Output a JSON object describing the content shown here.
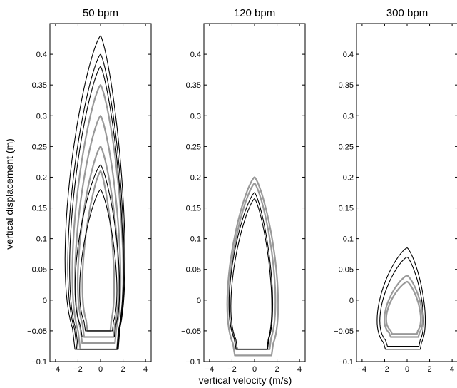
{
  "chart_data": [
    {
      "type": "line",
      "title": "50 bpm",
      "xlabel": "vertical velocity (m/s)",
      "ylabel": "vertical displacement (m)",
      "xlim": [
        -4.5,
        4.5
      ],
      "ylim": [
        -0.1,
        0.45
      ],
      "xticks": [
        -4,
        -2,
        0,
        2,
        4
      ],
      "yticks": [
        -0.1,
        -0.05,
        0,
        0.05,
        0.1,
        0.15,
        0.2,
        0.25,
        0.3,
        0.35,
        0.4
      ],
      "ytick_labels": [
        "−0.1",
        "−0.05",
        "0",
        "0.05",
        "0.1",
        "0.15",
        "0.2",
        "0.25",
        "0.3",
        "0.35",
        "0.4"
      ],
      "xtick_labels": [
        "−4",
        "−2",
        "0",
        "2",
        "4"
      ],
      "show_ytick_labels": true,
      "series": [
        {
          "color": "#999999",
          "loops": [
            {
              "vmin": -3.1,
              "vmax": 2.5,
              "ymin": -0.08,
              "ymax": 0.35
            },
            {
              "vmin": -2.8,
              "vmax": 2.2,
              "ymin": -0.07,
              "ymax": 0.3
            },
            {
              "vmin": -2.5,
              "vmax": 2.0,
              "ymin": -0.06,
              "ymax": 0.25
            },
            {
              "vmin": -2.0,
              "vmax": 1.5,
              "ymin": -0.05,
              "ymax": 0.21
            }
          ]
        },
        {
          "color": "#000000",
          "loops": [
            {
              "vmin": -3.9,
              "vmax": 2.7,
              "ymin": -0.08,
              "ymax": 0.43
            },
            {
              "vmin": -3.6,
              "vmax": 2.6,
              "ymin": -0.08,
              "ymax": 0.4
            },
            {
              "vmin": -3.4,
              "vmax": 2.5,
              "ymin": -0.08,
              "ymax": 0.38
            },
            {
              "vmin": -2.8,
              "vmax": 2.1,
              "ymin": -0.06,
              "ymax": 0.22
            },
            {
              "vmin": -2.3,
              "vmax": 1.8,
              "ymin": -0.05,
              "ymax": 0.18
            }
          ]
        }
      ]
    },
    {
      "type": "line",
      "title": "120 bpm",
      "xlabel": "vertical velocity (m/s)",
      "ylabel": "",
      "xlim": [
        -4.5,
        4.5
      ],
      "ylim": [
        -0.1,
        0.45
      ],
      "xticks": [
        -4,
        -2,
        0,
        2,
        4
      ],
      "yticks": [
        -0.1,
        -0.05,
        0,
        0.05,
        0.1,
        0.15,
        0.2,
        0.25,
        0.3,
        0.35,
        0.4
      ],
      "ytick_labels": [
        "−0.1",
        "−0.05",
        "0",
        "0.05",
        "0.1",
        "0.15",
        "0.2",
        "0.25",
        "0.3",
        "0.35",
        "0.4"
      ],
      "xtick_labels": [
        "−4",
        "−2",
        "0",
        "2",
        "4"
      ],
      "show_ytick_labels": true,
      "series": [
        {
          "color": "#999999",
          "loops": [
            {
              "vmin": -3.0,
              "vmax": 2.6,
              "ymin": -0.09,
              "ymax": 0.2
            },
            {
              "vmin": -2.8,
              "vmax": 2.3,
              "ymin": -0.08,
              "ymax": 0.19
            }
          ]
        },
        {
          "color": "#000000",
          "loops": [
            {
              "vmin": -2.8,
              "vmax": 2.0,
              "ymin": -0.08,
              "ymax": 0.175
            },
            {
              "vmin": -2.6,
              "vmax": 1.9,
              "ymin": -0.08,
              "ymax": 0.165
            }
          ]
        }
      ]
    },
    {
      "type": "line",
      "title": "300 bpm",
      "xlabel": "vertical velocity (m/s)",
      "ylabel": "",
      "xlim": [
        -4.5,
        4.5
      ],
      "ylim": [
        -0.1,
        0.45
      ],
      "xticks": [
        -4,
        -2,
        0,
        2,
        4
      ],
      "yticks": [
        -0.1,
        -0.05,
        0,
        0.05,
        0.1,
        0.15,
        0.2,
        0.25,
        0.3,
        0.35,
        0.4
      ],
      "ytick_labels": [
        "−0.1",
        "−0.05",
        "0",
        "0.05",
        "0.1",
        "0.15",
        "0.2",
        "0.25",
        "0.3",
        "0.35",
        "0.4"
      ],
      "xtick_labels": [
        "−4",
        "−2",
        "0",
        "2",
        "4"
      ],
      "show_ytick_labels": true,
      "series": [
        {
          "color": "#999999",
          "loops": [
            {
              "vmin": -2.5,
              "vmax": 1.7,
              "ymin": -0.06,
              "ymax": 0.04
            },
            {
              "vmin": -2.3,
              "vmax": 1.5,
              "ymin": -0.055,
              "ymax": 0.03
            }
          ]
        },
        {
          "color": "#000000",
          "loops": [
            {
              "vmin": -3.3,
              "vmax": 2.0,
              "ymin": -0.08,
              "ymax": 0.085
            },
            {
              "vmin": -3.0,
              "vmax": 1.8,
              "ymin": -0.075,
              "ymax": 0.07
            }
          ]
        }
      ]
    }
  ],
  "shared_labels": {
    "xlabel": "vertical velocity (m/s)",
    "ylabel": "vertical displacement (m)"
  }
}
